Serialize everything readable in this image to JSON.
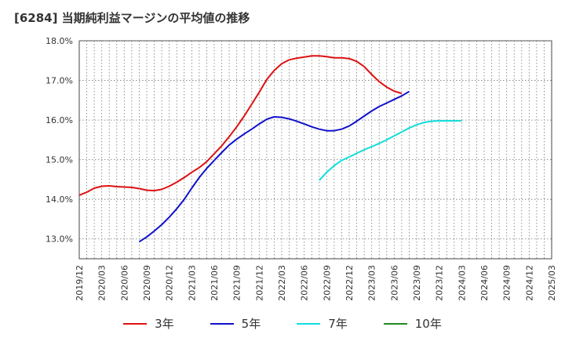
{
  "chart_data": {
    "type": "line",
    "title": "[6284]  当期純利益マージンの平均値の推移",
    "ylim": [
      12.5,
      18.0
    ],
    "yticks": [
      "13.0%",
      "14.0%",
      "15.0%",
      "16.0%",
      "17.0%",
      "18.0%"
    ],
    "ytick_values": [
      13.0,
      14.0,
      15.0,
      16.0,
      17.0,
      18.0
    ],
    "xticks": [
      "2019/12",
      "2020/03",
      "2020/06",
      "2020/09",
      "2020/12",
      "2021/03",
      "2021/06",
      "2021/09",
      "2021/12",
      "2022/03",
      "2022/06",
      "2022/09",
      "2022/12",
      "2023/03",
      "2023/06",
      "2023/09",
      "2023/12",
      "2024/03",
      "2024/06",
      "2024/09",
      "2024/12",
      "2025/03"
    ],
    "grid": true,
    "legend_position": "bottom",
    "series": [
      {
        "name": "3年",
        "color": "#dd1111",
        "start": "2019/12",
        "values": [
          14.1,
          14.18,
          14.28,
          14.33,
          14.34,
          14.32,
          14.31,
          14.3,
          14.27,
          14.23,
          14.22,
          14.25,
          14.33,
          14.43,
          14.55,
          14.68,
          14.8,
          14.95,
          15.15,
          15.35,
          15.58,
          15.83,
          16.1,
          16.4,
          16.7,
          17.02,
          17.25,
          17.42,
          17.52,
          17.56,
          17.59,
          17.62,
          17.62,
          17.6,
          17.57,
          17.57,
          17.55,
          17.48,
          17.35,
          17.15,
          16.97,
          16.83,
          16.73,
          16.67
        ]
      },
      {
        "name": "5年",
        "color": "#1111cc",
        "start": "2020/08",
        "values": [
          12.93,
          13.05,
          13.2,
          13.36,
          13.55,
          13.76,
          14.0,
          14.28,
          14.55,
          14.78,
          14.98,
          15.18,
          15.37,
          15.52,
          15.65,
          15.77,
          15.9,
          16.02,
          16.08,
          16.07,
          16.03,
          15.97,
          15.9,
          15.83,
          15.77,
          15.73,
          15.73,
          15.77,
          15.85,
          15.97,
          16.1,
          16.23,
          16.34,
          16.43,
          16.52,
          16.61,
          16.72
        ]
      },
      {
        "name": "7年",
        "color": "#11dddd",
        "start": "2022/08",
        "values": [
          14.48,
          14.68,
          14.85,
          14.98,
          15.07,
          15.16,
          15.25,
          15.33,
          15.41,
          15.5,
          15.6,
          15.7,
          15.8,
          15.88,
          15.94,
          15.97,
          15.98,
          15.98,
          15.98,
          15.98
        ]
      },
      {
        "name": "10年",
        "color": "#228822",
        "start": "2019/12",
        "values": []
      }
    ]
  }
}
